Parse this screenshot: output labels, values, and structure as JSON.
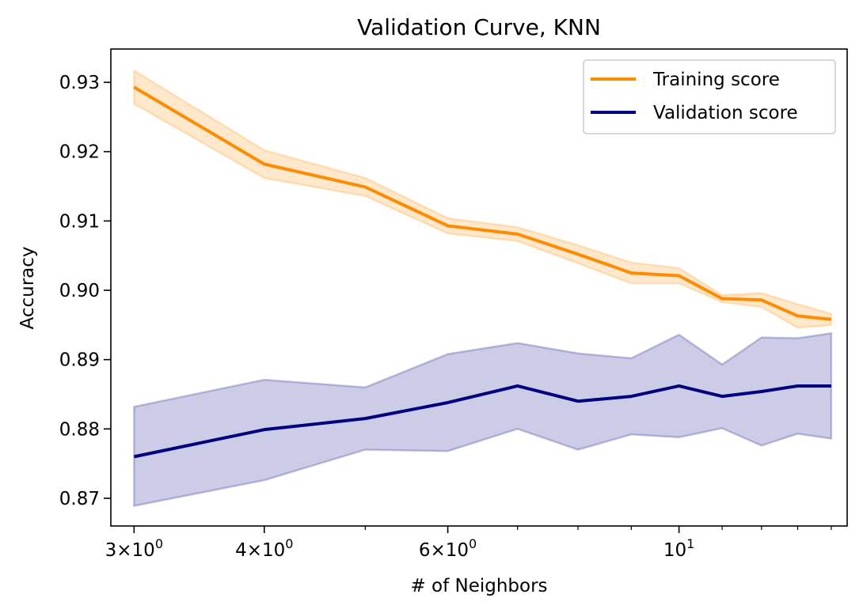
{
  "chart_data": {
    "type": "line",
    "title": "Validation Curve, KNN",
    "xlabel": "# of Neighbors",
    "ylabel": "Accuracy",
    "x_scale": "log",
    "xlim": [
      2.85,
      14.5
    ],
    "ylim": [
      0.866,
      0.9348
    ],
    "grid": false,
    "legend_position": "top-right",
    "x_ticks": [
      {
        "value": 3,
        "coef": "3",
        "exp": "0"
      },
      {
        "value": 4,
        "coef": "4",
        "exp": "0"
      },
      {
        "value": 6,
        "coef": "6",
        "exp": "0"
      },
      {
        "value": 10,
        "coef": "",
        "exp": "1"
      }
    ],
    "y_ticks": [
      {
        "value": 0.87,
        "label": "0.87"
      },
      {
        "value": 0.88,
        "label": "0.88"
      },
      {
        "value": 0.89,
        "label": "0.89"
      },
      {
        "value": 0.9,
        "label": "0.90"
      },
      {
        "value": 0.91,
        "label": "0.91"
      },
      {
        "value": 0.92,
        "label": "0.92"
      },
      {
        "value": 0.93,
        "label": "0.93"
      }
    ],
    "x": [
      3,
      4,
      5,
      6,
      7,
      8,
      9,
      10,
      11,
      12,
      13,
      14
    ],
    "series": [
      {
        "name": "Training score",
        "color": "#ff8c00",
        "values": [
          0.9293,
          0.9182,
          0.9149,
          0.9093,
          0.9081,
          0.9052,
          0.9025,
          0.9021,
          0.8988,
          0.8986,
          0.8963,
          0.8958
        ],
        "upper": [
          0.9317,
          0.9202,
          0.9162,
          0.9104,
          0.9091,
          0.9065,
          0.904,
          0.9032,
          0.8993,
          0.8996,
          0.898,
          0.8966
        ],
        "lower": [
          0.9269,
          0.9162,
          0.9136,
          0.9082,
          0.9071,
          0.9039,
          0.901,
          0.901,
          0.8983,
          0.8976,
          0.8946,
          0.895
        ]
      },
      {
        "name": "Validation score",
        "color": "#000080",
        "values": [
          0.876,
          0.8799,
          0.8815,
          0.8838,
          0.8862,
          0.884,
          0.8847,
          0.8862,
          0.8847,
          0.8854,
          0.8862,
          0.8862
        ],
        "upper": [
          0.8832,
          0.8871,
          0.886,
          0.8908,
          0.8924,
          0.8909,
          0.8902,
          0.8936,
          0.8893,
          0.8932,
          0.8931,
          0.8938
        ],
        "lower": [
          0.8689,
          0.8726,
          0.877,
          0.8768,
          0.88,
          0.877,
          0.8792,
          0.8788,
          0.8801,
          0.8776,
          0.8793,
          0.8786
        ]
      }
    ]
  }
}
